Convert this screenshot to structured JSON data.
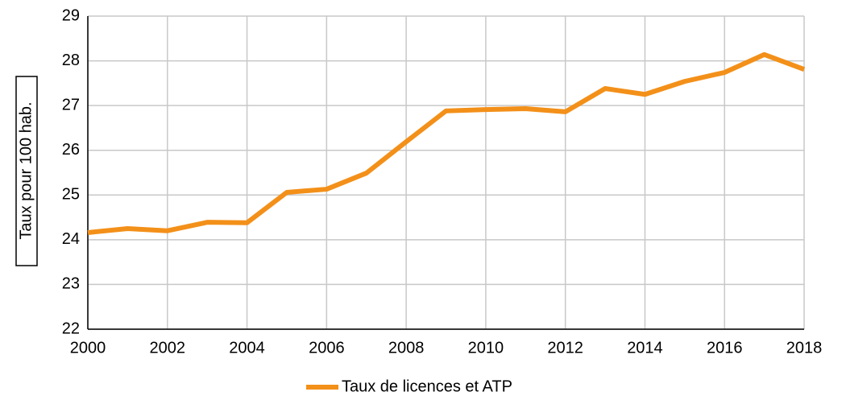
{
  "chart_data": {
    "type": "line",
    "y_label": "Taux pour 100 hab.",
    "x": [
      2000,
      2001,
      2002,
      2003,
      2004,
      2005,
      2006,
      2007,
      2008,
      2009,
      2010,
      2011,
      2012,
      2013,
      2014,
      2015,
      2016,
      2017,
      2018
    ],
    "series": [
      {
        "name": "Taux de licences et ATP",
        "color": "#f39019",
        "values": [
          24.16,
          24.25,
          24.2,
          24.39,
          24.38,
          25.06,
          25.13,
          25.49,
          26.19,
          26.88,
          26.91,
          26.93,
          26.86,
          27.38,
          27.25,
          27.54,
          27.74,
          28.14,
          27.81
        ]
      }
    ],
    "xlim": [
      2000,
      2018
    ],
    "xticks": [
      2000,
      2002,
      2004,
      2006,
      2008,
      2010,
      2012,
      2014,
      2016,
      2018
    ],
    "ylim": [
      22,
      29
    ],
    "yticks": [
      22,
      23,
      24,
      25,
      26,
      27,
      28,
      29
    ],
    "grid": true,
    "legend": "bottom"
  }
}
